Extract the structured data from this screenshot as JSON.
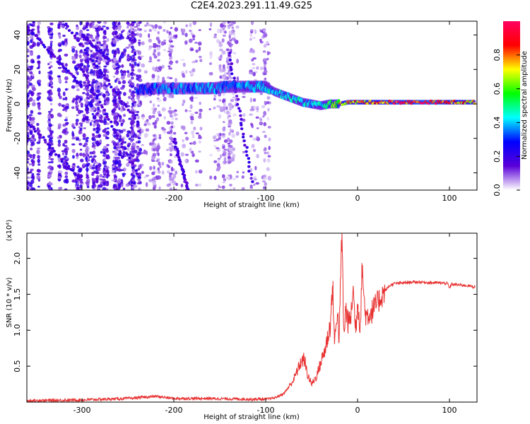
{
  "title": "C2E4.2023.291.11.49.G25",
  "chart_data": [
    {
      "type": "heatmap",
      "xlabel": "Height of straight line (km)",
      "ylabel": "Frequency (Hz)",
      "xlim": [
        -360,
        130
      ],
      "ylim": [
        -50,
        48
      ],
      "x_ticks": [
        -300,
        -200,
        -100,
        0,
        100
      ],
      "y_ticks": [
        -40,
        -20,
        0,
        20,
        40
      ],
      "colorbar": {
        "label": "Normalized spectral amplitude",
        "range": [
          0,
          1
        ],
        "ticks": [
          "0.0",
          "0.2",
          "0.4",
          "0.6",
          "0.8"
        ],
        "colors": [
          "#ffffff",
          "#5a00d8",
          "#0000ff",
          "#00ffff",
          "#00ff00",
          "#ffff00",
          "#ff0000",
          "#ff0060"
        ]
      },
      "ridge": {
        "x": [
          -240,
          -220,
          -200,
          -180,
          -160,
          -140,
          -120,
          -100,
          -90,
          -80,
          -70,
          -60,
          -50,
          -40,
          -30,
          -20,
          -10,
          0,
          20,
          40,
          60,
          80,
          100,
          128
        ],
        "y": [
          8,
          9,
          9,
          9,
          9,
          10,
          10,
          10,
          7,
          5,
          3,
          1,
          0,
          -1,
          0,
          0,
          1,
          1,
          1,
          1,
          1,
          1,
          1,
          1
        ],
        "peak_amplitude": [
          0.3,
          0.35,
          0.35,
          0.35,
          0.4,
          0.35,
          0.4,
          0.45,
          0.4,
          0.4,
          0.45,
          0.45,
          0.4,
          0.45,
          0.55,
          0.7,
          0.75,
          0.75,
          0.8,
          0.9,
          0.9,
          0.95,
          0.85,
          0.7
        ]
      }
    },
    {
      "type": "line",
      "xlabel": "Height of straight line (km)",
      "ylabel": "SNR (10 * v/v)",
      "scale_label": "(x10⁴)",
      "xlim": [
        -360,
        130
      ],
      "ylim": [
        0,
        2.35
      ],
      "x_ticks": [
        -300,
        -200,
        -100,
        0,
        100
      ],
      "y_ticks": [
        0.5,
        1.0,
        1.5,
        2.0
      ],
      "y_tick_labels": [
        "0.5",
        "1.0",
        "1.5",
        "2.0"
      ],
      "color": "#e83030",
      "series": [
        {
          "x": [
            -360,
            -300,
            -250,
            -220,
            -200,
            -160,
            -120,
            -100,
            -90,
            -80,
            -70,
            -62,
            -58,
            -55,
            -50,
            -45,
            -40,
            -35,
            -30,
            -27,
            -25,
            -22,
            -20,
            -18,
            -17,
            -15,
            -13,
            -10,
            -7,
            -5,
            -2,
            0,
            3,
            5,
            8,
            10,
            15,
            20,
            25,
            30,
            35,
            40,
            50,
            60,
            70,
            80,
            90,
            98,
            100,
            102,
            110,
            120,
            128
          ],
          "y": [
            0.02,
            0.03,
            0.05,
            0.08,
            0.05,
            0.05,
            0.04,
            0.04,
            0.06,
            0.12,
            0.3,
            0.55,
            0.6,
            0.4,
            0.25,
            0.35,
            0.55,
            0.75,
            1.05,
            1.6,
            0.8,
            1.3,
            0.85,
            2.0,
            2.35,
            0.9,
            1.3,
            1.1,
            1.2,
            1.6,
            1.0,
            1.4,
            1.05,
            1.9,
            1.25,
            1.2,
            1.25,
            1.35,
            1.45,
            1.55,
            1.62,
            1.65,
            1.66,
            1.67,
            1.67,
            1.66,
            1.66,
            1.65,
            1.58,
            1.64,
            1.63,
            1.62,
            1.6
          ]
        }
      ]
    }
  ]
}
